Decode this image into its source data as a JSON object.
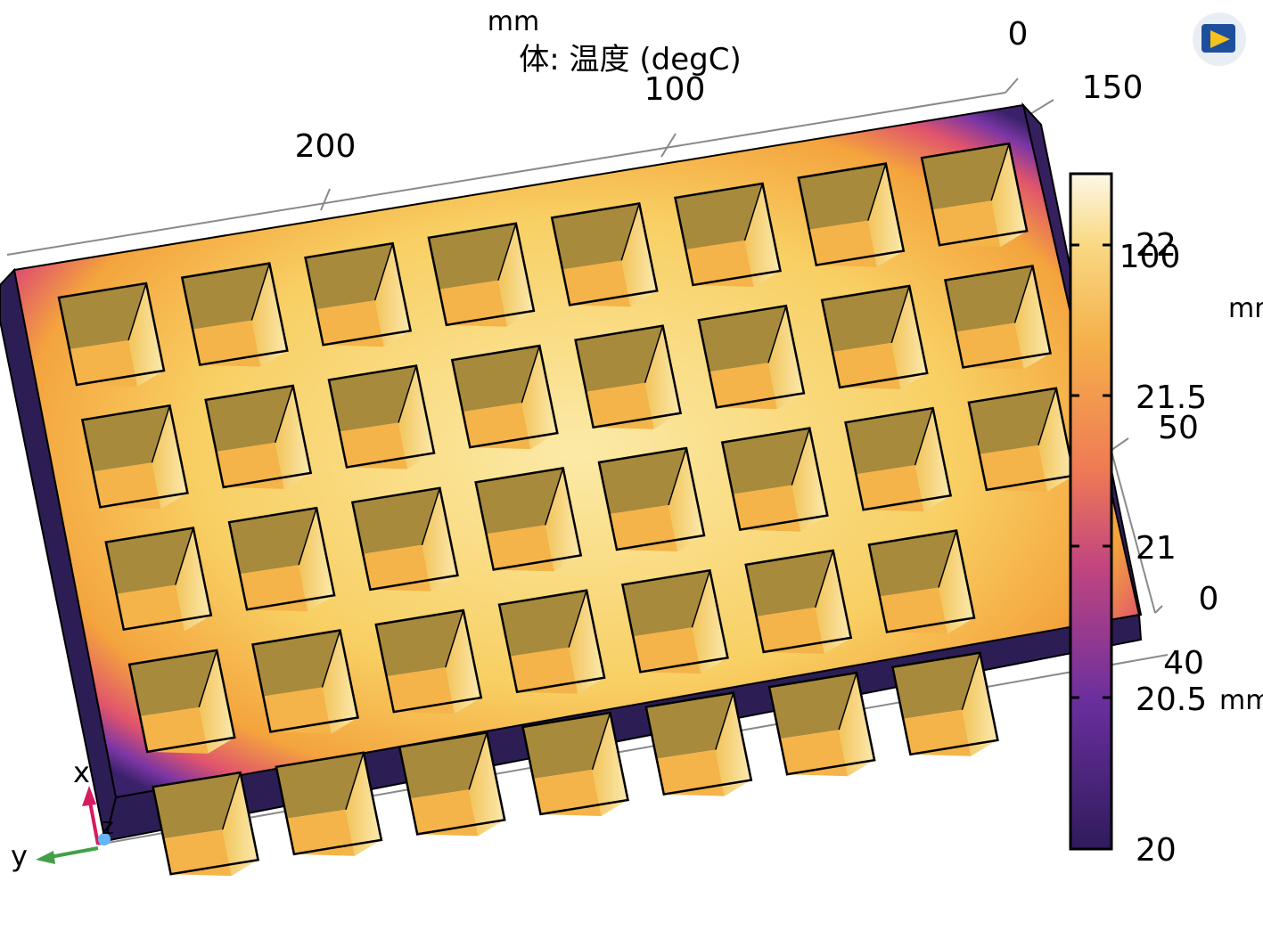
{
  "plot": {
    "unit_top": "mm",
    "title": "体: 温度 (degC)",
    "top_axis_ticks": [
      "200",
      "100",
      "0"
    ],
    "right_axis_ticks": [
      "150",
      "100",
      "50",
      "0"
    ],
    "right_axis_unit": "mm",
    "depth_axis_tick": "40",
    "depth_axis_unit": "mm"
  },
  "colorbar": {
    "ticks": [
      "22",
      "21.5",
      "21",
      "20.5",
      "20"
    ],
    "min": 20,
    "max": 22.2,
    "colors": {
      "low": "#2f1b5c",
      "mid_low": "#7a3aa8",
      "mid": "#e2567a",
      "mid_high": "#f5a443",
      "high": "#fbf5dc"
    }
  },
  "triad": {
    "x_label": "x",
    "y_label": "y",
    "z_label": "z",
    "x_color": "#d81b60",
    "y_color": "#43a047",
    "z_color": "#64b5f6"
  },
  "logo": {
    "icon": "comsol-logo-icon"
  },
  "model": {
    "rows": 5,
    "columns": 8,
    "description_colors": {
      "frame_edge": "#35205f",
      "side_face": "#2c1e55"
    }
  }
}
